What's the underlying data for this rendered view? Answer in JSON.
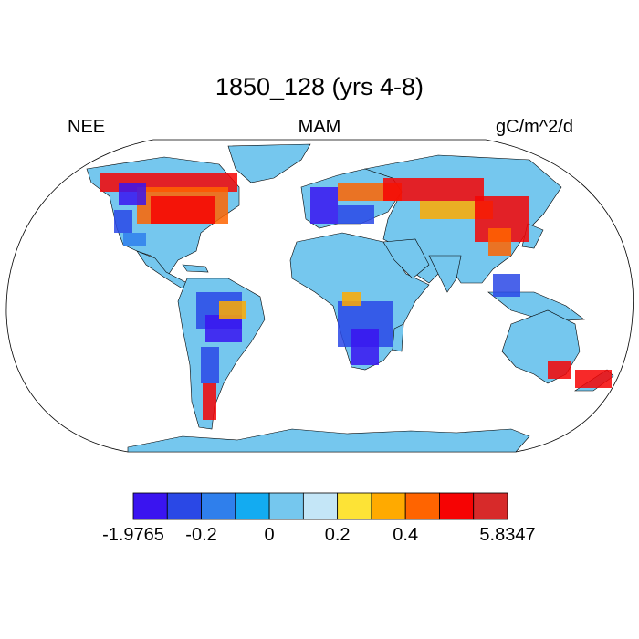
{
  "figure": {
    "title": "1850_128 (yrs 4-8)",
    "left_string": "NEE",
    "center_string": "MAM",
    "right_string": "gC/m^2/d"
  },
  "colorbar": {
    "colors": [
      "#3a14f0",
      "#2a48e6",
      "#2f7fec",
      "#13abf1",
      "#75c7ee",
      "#c4e6f7",
      "#fde336",
      "#ffaa00",
      "#ff6400",
      "#f60303",
      "#d72a2a"
    ],
    "tick_labels": [
      "-1.9765",
      "-0.2",
      "0",
      "0.2",
      "0.4",
      "5.8347"
    ]
  },
  "map": {
    "projection": "Robinson",
    "ocean_color": "#ffffff",
    "land_base_color": "#75c7ee",
    "coastline_color": "#000000"
  }
}
